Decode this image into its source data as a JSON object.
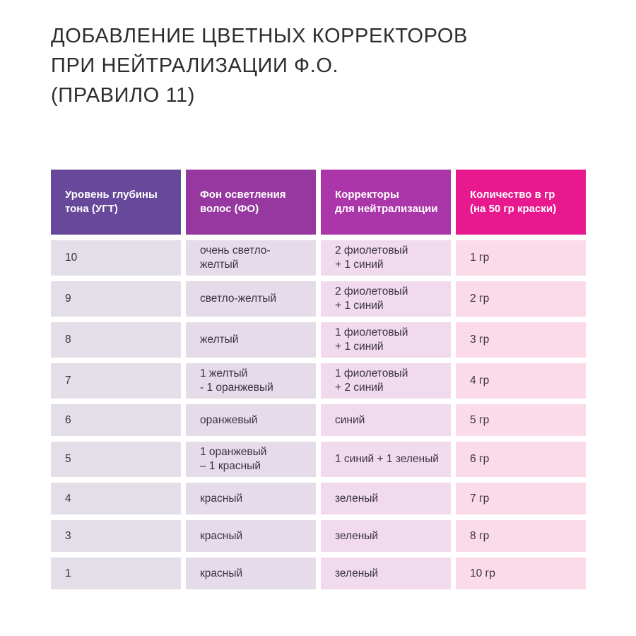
{
  "page": {
    "title": "ДОБАВЛЕНИЕ ЦВЕТНЫХ КОРРЕКТОРОВ\nПРИ НЕЙТРАЛИЗАЦИИ Ф.О.\n(ПРАВИЛО 11)",
    "title_color": "#2d2d2d",
    "background_color": "#ffffff"
  },
  "table": {
    "headers": [
      {
        "label": "Уровень глубины\nтона (УГТ)",
        "bg": "#67489b"
      },
      {
        "label": "Фон осветления\nволос (ФО)",
        "bg": "#9738a0"
      },
      {
        "label": "Корректоры\nдля нейтрализации",
        "bg": "#ab36a9"
      },
      {
        "label": "Количество в гр\n(на 50 гр краски)",
        "bg": "#e8188f"
      }
    ],
    "cell_colors": [
      "#e4dee9",
      "#e6dbe9",
      "#f1daed",
      "#fbdae9"
    ],
    "text_color": "#3a3440",
    "rows": [
      {
        "ugt": "10",
        "fo": "очень светло-желтый",
        "corrector": "2 фиолетовый\n+ 1 синий",
        "amount": "1 гр"
      },
      {
        "ugt": "9",
        "fo": "светло-желтый",
        "corrector": "2 фиолетовый\n+ 1 синий",
        "amount": "2 гр"
      },
      {
        "ugt": "8",
        "fo": "желтый",
        "corrector": "1 фиолетовый\n+ 1 синий",
        "amount": "3 гр"
      },
      {
        "ugt": "7",
        "fo": "1 желтый\n- 1 оранжевый",
        "corrector": "1 фиолетовый\n+ 2 синий",
        "amount": "4 гр"
      },
      {
        "ugt": "6",
        "fo": "оранжевый",
        "corrector": "синий",
        "amount": "5 гр"
      },
      {
        "ugt": "5",
        "fo": "1 оранжевый\n– 1 красный",
        "corrector": "1 синий + 1 зеленый",
        "amount": "6 гр"
      },
      {
        "ugt": "4",
        "fo": "красный",
        "corrector": "зеленый",
        "amount": "7 гр"
      },
      {
        "ugt": "3",
        "fo": "красный",
        "corrector": "зеленый",
        "amount": "8 гр"
      },
      {
        "ugt": "1",
        "fo": "красный",
        "corrector": "зеленый",
        "amount": "10 гр"
      }
    ]
  }
}
